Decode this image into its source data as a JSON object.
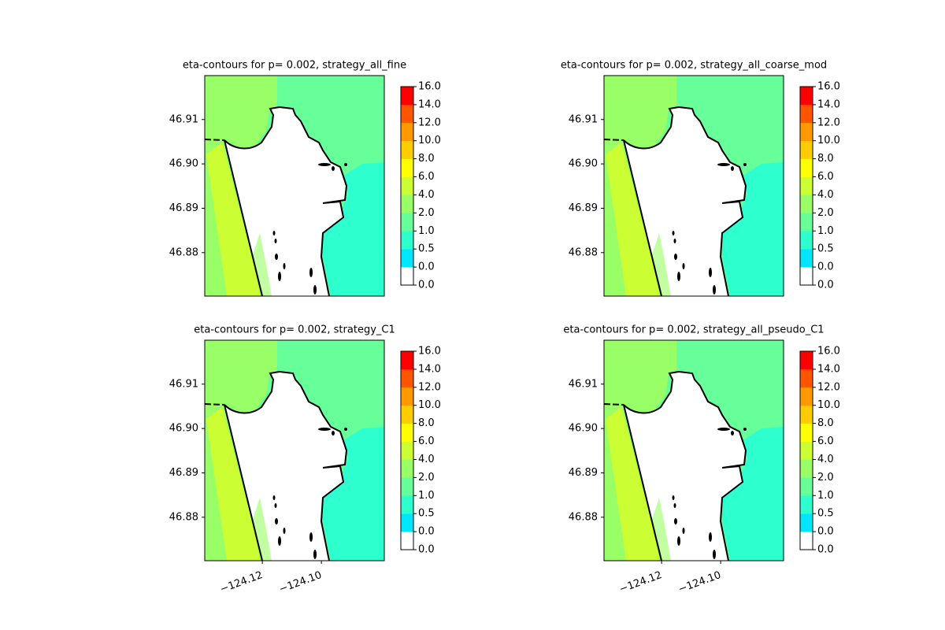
{
  "chart_data": [
    {
      "type": "contour",
      "title": "eta-contours for p= 0.002, strategy_all_fine",
      "xlim": [
        -124.1395,
        -124.0787
      ],
      "ylim": [
        46.8702,
        46.9199
      ],
      "yticks": [
        46.88,
        46.89,
        {
          "value": 46.9,
          "label": "46.90"
        },
        46.91
      ],
      "colorbar": {
        "ticks": [
          {
            "value": 0,
            "label": "0.0"
          },
          {
            "value": 0,
            "label": "0.0"
          },
          0.5,
          {
            "value": 1,
            "label": "1.0"
          },
          {
            "value": 2,
            "label": "2.0"
          },
          {
            "value": 4,
            "label": "4.0"
          },
          {
            "value": 6,
            "label": "6.0"
          },
          {
            "value": 8,
            "label": "8.0"
          },
          {
            "value": 10,
            "label": "10.0"
          },
          {
            "value": 12,
            "label": "12.0"
          },
          {
            "value": 14,
            "label": "14.0"
          },
          {
            "value": 16,
            "label": "16.0"
          }
        ],
        "colors": [
          "#ffffff",
          "#00e6ff",
          "#2effcf",
          "#66ff99",
          "#99ff66",
          "#ccff33",
          "#ffff00",
          "#ffcc00",
          "#ff9900",
          "#ff5500",
          "#ff0000"
        ]
      }
    },
    {
      "type": "contour",
      "title": "eta-contours for p= 0.002, strategy_all_coarse_mod",
      "xlim": [
        -124.1395,
        -124.0787
      ],
      "ylim": [
        46.8702,
        46.9199
      ],
      "yticks": [
        46.88,
        46.89,
        {
          "value": 46.9,
          "label": "46.90"
        },
        46.91
      ],
      "colorbar": {
        "ticks": [
          {
            "value": 0,
            "label": "0.0"
          },
          {
            "value": 0,
            "label": "0.0"
          },
          0.5,
          {
            "value": 1,
            "label": "1.0"
          },
          {
            "value": 2,
            "label": "2.0"
          },
          {
            "value": 4,
            "label": "4.0"
          },
          {
            "value": 6,
            "label": "6.0"
          },
          {
            "value": 8,
            "label": "8.0"
          },
          {
            "value": 10,
            "label": "10.0"
          },
          {
            "value": 12,
            "label": "12.0"
          },
          {
            "value": 14,
            "label": "14.0"
          },
          {
            "value": 16,
            "label": "16.0"
          }
        ],
        "colors": [
          "#ffffff",
          "#00e6ff",
          "#2effcf",
          "#66ff99",
          "#99ff66",
          "#ccff33",
          "#ffff00",
          "#ffcc00",
          "#ff9900",
          "#ff5500",
          "#ff0000"
        ]
      }
    },
    {
      "type": "contour",
      "title": "eta-contours for p= 0.002, strategy_C1",
      "xlim": [
        -124.1395,
        -124.0787
      ],
      "ylim": [
        46.8702,
        46.9199
      ],
      "xticks": [
        {
          "value": -124.12,
          "label": "−124.12"
        },
        {
          "value": -124.1,
          "label": "−124.10"
        }
      ],
      "yticks": [
        46.88,
        46.89,
        {
          "value": 46.9,
          "label": "46.90"
        },
        46.91
      ],
      "colorbar": {
        "ticks": [
          {
            "value": 0,
            "label": "0.0"
          },
          {
            "value": 0,
            "label": "0.0"
          },
          0.5,
          {
            "value": 1,
            "label": "1.0"
          },
          {
            "value": 2,
            "label": "2.0"
          },
          {
            "value": 4,
            "label": "4.0"
          },
          {
            "value": 6,
            "label": "6.0"
          },
          {
            "value": 8,
            "label": "8.0"
          },
          {
            "value": 10,
            "label": "10.0"
          },
          {
            "value": 12,
            "label": "12.0"
          },
          {
            "value": 14,
            "label": "14.0"
          },
          {
            "value": 16,
            "label": "16.0"
          }
        ],
        "colors": [
          "#ffffff",
          "#00e6ff",
          "#2effcf",
          "#66ff99",
          "#99ff66",
          "#ccff33",
          "#ffff00",
          "#ffcc00",
          "#ff9900",
          "#ff5500",
          "#ff0000"
        ]
      }
    },
    {
      "type": "contour",
      "title": "eta-contours for p= 0.002, strategy_all_pseudo_C1",
      "xlim": [
        -124.1395,
        -124.0787
      ],
      "ylim": [
        46.8702,
        46.9199
      ],
      "xticks": [
        {
          "value": -124.12,
          "label": "−124.12"
        },
        {
          "value": -124.1,
          "label": "−124.10"
        }
      ],
      "yticks": [
        46.88,
        46.89,
        {
          "value": 46.9,
          "label": "46.90"
        },
        46.91
      ],
      "colorbar": {
        "ticks": [
          {
            "value": 0,
            "label": "0.0"
          },
          {
            "value": 0,
            "label": "0.0"
          },
          0.5,
          {
            "value": 1,
            "label": "1.0"
          },
          {
            "value": 2,
            "label": "2.0"
          },
          {
            "value": 4,
            "label": "4.0"
          },
          {
            "value": 6,
            "label": "6.0"
          },
          {
            "value": 8,
            "label": "8.0"
          },
          {
            "value": 10,
            "label": "10.0"
          },
          {
            "value": 12,
            "label": "12.0"
          },
          {
            "value": 14,
            "label": "14.0"
          },
          {
            "value": 16,
            "label": "16.0"
          }
        ],
        "colors": [
          "#ffffff",
          "#00e6ff",
          "#2effcf",
          "#66ff99",
          "#99ff66",
          "#ccff33",
          "#ffff00",
          "#ffcc00",
          "#ff9900",
          "#ff5500",
          "#ff0000"
        ]
      }
    }
  ]
}
